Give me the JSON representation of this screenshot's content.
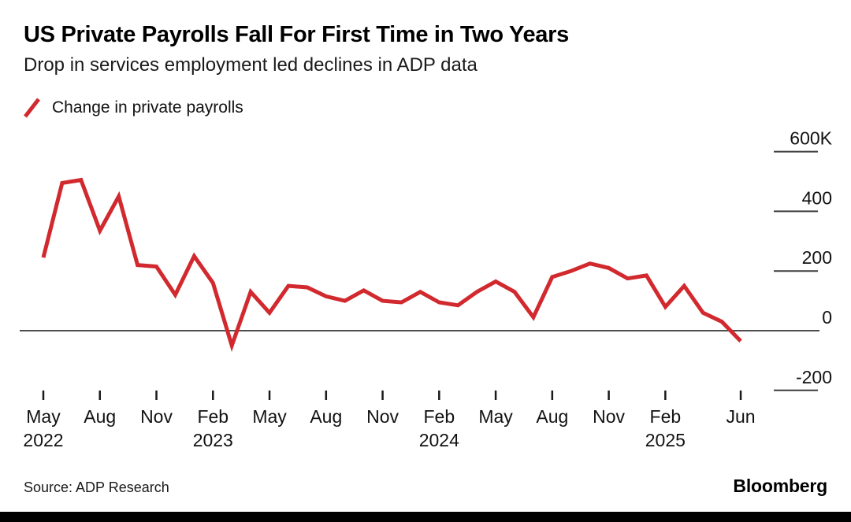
{
  "header": {
    "title": "US Private Payrolls Fall For First Time in Two Years",
    "subtitle": "Drop in services employment led declines in ADP data"
  },
  "legend": {
    "marker": "red-slash",
    "label": "Change in private payrolls"
  },
  "chart_data": {
    "type": "line",
    "title": "US Private Payrolls Fall For First Time in Two Years",
    "subtitle": "Drop in services employment led declines in ADP data",
    "series_name": "Change in private payrolls",
    "unit": "thousands of jobs (K)",
    "x": [
      "May 2022",
      "Jun 2022",
      "Jul 2022",
      "Aug 2022",
      "Sep 2022",
      "Oct 2022",
      "Nov 2022",
      "Dec 2022",
      "Jan 2023",
      "Feb 2023",
      "Mar 2023",
      "Apr 2023",
      "May 2023",
      "Jun 2023",
      "Jul 2023",
      "Aug 2023",
      "Sep 2023",
      "Oct 2023",
      "Nov 2023",
      "Dec 2023",
      "Jan 2024",
      "Feb 2024",
      "Mar 2024",
      "Apr 2024",
      "May 2024",
      "Jun 2024",
      "Jul 2024",
      "Aug 2024",
      "Sep 2024",
      "Oct 2024",
      "Nov 2024",
      "Dec 2024",
      "Jan 2025",
      "Feb 2025",
      "Mar 2025",
      "Apr 2025",
      "May 2025",
      "Jun 2025"
    ],
    "values": [
      245,
      495,
      505,
      335,
      450,
      220,
      215,
      120,
      250,
      160,
      -50,
      130,
      60,
      150,
      145,
      115,
      100,
      135,
      100,
      95,
      130,
      95,
      85,
      130,
      165,
      130,
      45,
      180,
      200,
      225,
      210,
      175,
      185,
      80,
      150,
      60,
      30,
      -35
    ],
    "ylim": [
      -280,
      690
    ],
    "y_ticks": [
      {
        "label": "600K",
        "value": 600
      },
      {
        "label": "400",
        "value": 400
      },
      {
        "label": "200",
        "value": 200
      },
      {
        "label": "0",
        "value": 0
      },
      {
        "label": "-200",
        "value": -200
      }
    ],
    "x_ticks": [
      {
        "index": 0,
        "label": "May",
        "year": "2022"
      },
      {
        "index": 3,
        "label": "Aug"
      },
      {
        "index": 6,
        "label": "Nov"
      },
      {
        "index": 9,
        "label": "Feb",
        "year": "2023"
      },
      {
        "index": 12,
        "label": "May"
      },
      {
        "index": 15,
        "label": "Aug"
      },
      {
        "index": 18,
        "label": "Nov"
      },
      {
        "index": 21,
        "label": "Feb",
        "year": "2024"
      },
      {
        "index": 24,
        "label": "May"
      },
      {
        "index": 27,
        "label": "Aug"
      },
      {
        "index": 30,
        "label": "Nov"
      },
      {
        "index": 33,
        "label": "Feb",
        "year": "2025"
      },
      {
        "index": 37,
        "label": "Jun"
      }
    ],
    "zero_line": true,
    "grid": "short right-edge segments under y labels",
    "legend_position": "top-left",
    "line_color": "#d1292e"
  },
  "colors": {
    "line": "#d1292e",
    "zero_line": "#4d4d4d",
    "grid_segment": "#3c3c3c",
    "tick_mark": "#1a1a1a",
    "text": "#111111",
    "bottom_bar": "#000000"
  },
  "footer": {
    "source": "Source: ADP Research",
    "brand": "Bloomberg"
  }
}
